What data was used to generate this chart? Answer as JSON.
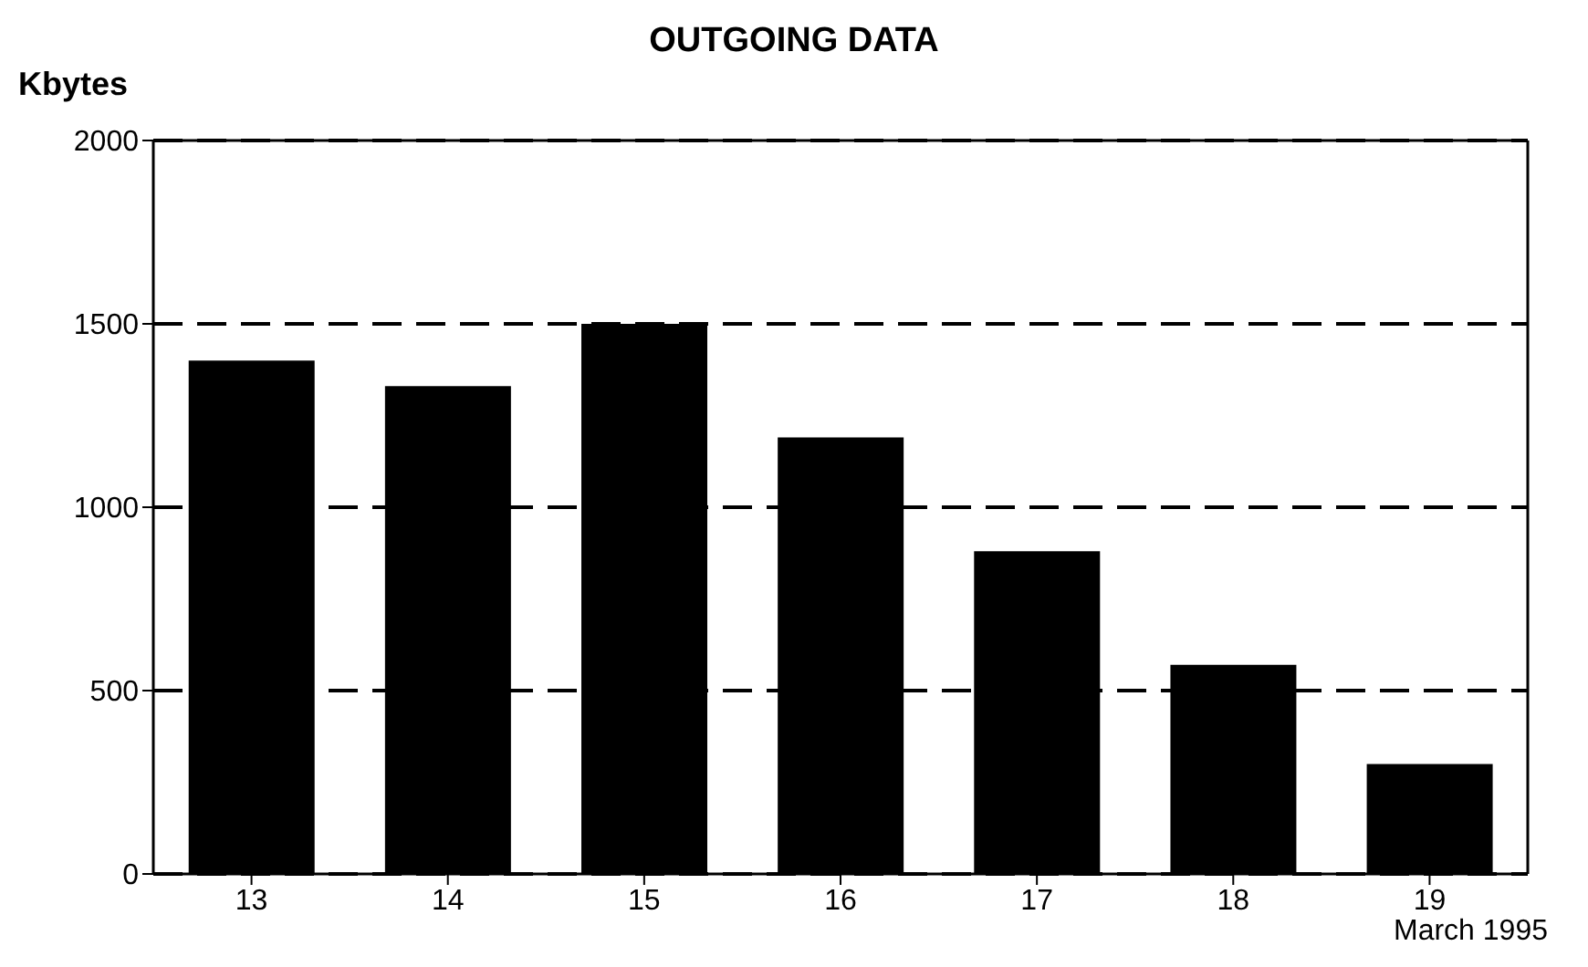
{
  "chart_data": {
    "type": "bar",
    "title": "OUTGOING DATA",
    "ylabel": "Kbytes",
    "categories": [
      "13",
      "14",
      "15",
      "16",
      "17",
      "18",
      "19"
    ],
    "values": [
      1400,
      1330,
      1500,
      1190,
      880,
      570,
      300
    ],
    "color": "#000000",
    "ylim": [
      0,
      2000
    ],
    "yticks": [
      0,
      500,
      1000,
      1500,
      2000
    ],
    "grid": "y",
    "annotations": [
      "March 1995"
    ]
  }
}
